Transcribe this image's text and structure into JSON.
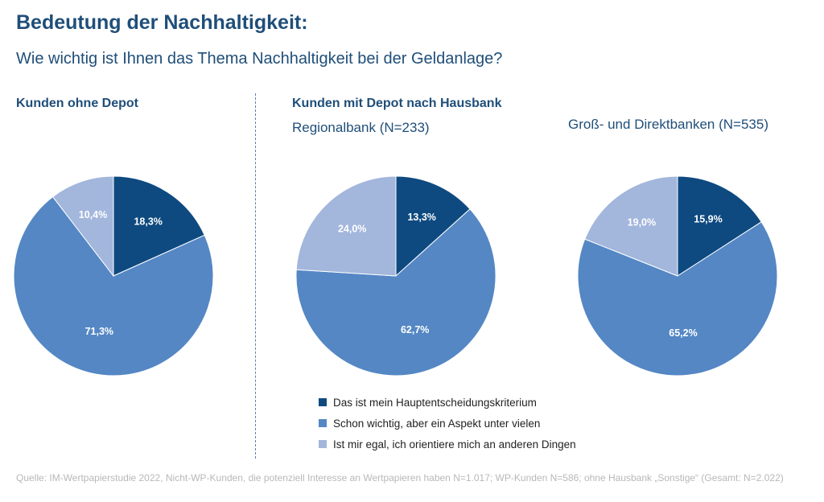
{
  "header": {
    "title": "Bedeutung der Nachhaltigkeit:",
    "question": "Wie wichtig ist Ihnen das Thema Nachhaltigkeit bei der Geldanlage?"
  },
  "sections": {
    "left_heading": "Kunden ohne Depot",
    "right_heading": "Kunden mit Depot nach Hausbank"
  },
  "colors": {
    "dark": "#0e4a80",
    "medium": "#5487c4",
    "light": "#a3b6dc"
  },
  "chart_data": [
    {
      "type": "pie",
      "title": "",
      "labels": [
        "Das ist mein Hauptentscheidungskriterium",
        "Schon wichtig, aber ein Aspekt unter vielen",
        "Ist mir egal, ich orientiere mich an anderen Dingen"
      ],
      "values": [
        18.3,
        71.3,
        10.4
      ],
      "value_labels": [
        "18,3%",
        "71,3%",
        "10,4%"
      ]
    },
    {
      "type": "pie",
      "title": "Regionalbank (N=233)",
      "labels": [
        "Das ist mein Hauptentscheidungskriterium",
        "Schon wichtig, aber ein Aspekt unter vielen",
        "Ist mir egal, ich orientiere mich an anderen Dingen"
      ],
      "values": [
        13.3,
        62.7,
        24.0
      ],
      "value_labels": [
        "13,3%",
        "62,7%",
        "24,0%"
      ]
    },
    {
      "type": "pie",
      "title": "Groß- und Direktbanken (N=535)",
      "labels": [
        "Das ist mein Hauptentscheidungskriterium",
        "Schon wichtig, aber ein Aspekt unter vielen",
        "Ist mir egal, ich orientiere mich an anderen Dingen"
      ],
      "values": [
        15.9,
        65.2,
        19.0
      ],
      "value_labels": [
        "15,9%",
        "65,2%",
        "19,0%"
      ]
    }
  ],
  "legend": {
    "items": [
      {
        "label": "Das ist mein Hauptentscheidungskriterium"
      },
      {
        "label": "Schon wichtig, aber ein Aspekt unter vielen"
      },
      {
        "label": "Ist mir egal, ich orientiere mich an anderen Dingen"
      }
    ]
  },
  "source": "Quelle: IM-Wertpapierstudie 2022, Nicht-WP-Kunden, die potenziell Interesse an Wertpapieren haben N=1.017; WP-Kunden N=586; ohne Hausbank „Sonstige“ (Gesamt: N=2.022)"
}
